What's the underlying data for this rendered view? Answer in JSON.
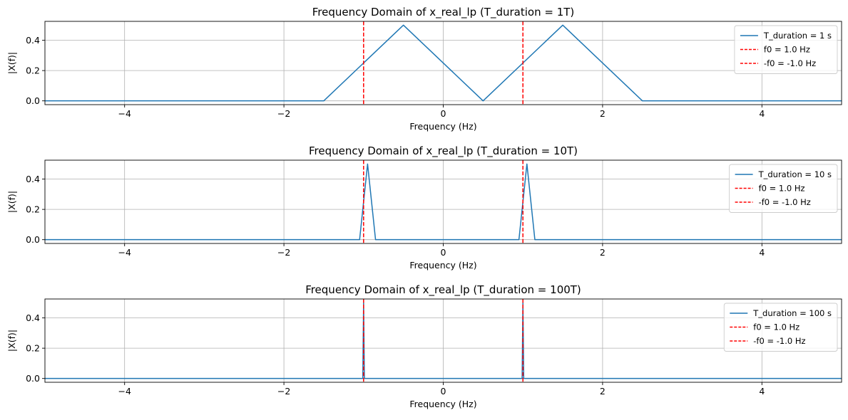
{
  "colors": {
    "series": "#1f77b4",
    "marker": "#ff0000",
    "grid": "#b0b0b0",
    "axes": "#000000",
    "legend_border": "#cccccc"
  },
  "chart_data": [
    {
      "type": "line",
      "title": "Frequency Domain of x_real_lp (T_duration = 1T)",
      "xlabel": "Frequency (Hz)",
      "ylabel": "|X(f)|",
      "xlim": [
        -5,
        5
      ],
      "ylim": [
        -0.025,
        0.525
      ],
      "xticks": [
        -4,
        -2,
        0,
        2,
        4
      ],
      "xtick_labels": [
        "−4",
        "−2",
        "0",
        "2",
        "4"
      ],
      "yticks": [
        0.0,
        0.2,
        0.4
      ],
      "ytick_labels": [
        "0.0",
        "0.2",
        "0.4"
      ],
      "grid": true,
      "legend_position": "upper-right",
      "series": [
        {
          "name": "T_duration = 1 s",
          "style": "solid",
          "x": [
            -5,
            -1.5,
            -0.5,
            0.5,
            1.5,
            2.5,
            5
          ],
          "y": [
            0,
            0,
            0.5,
            0,
            0.5,
            0,
            0
          ]
        }
      ],
      "vlines": [
        {
          "name": "f0 = 1.0 Hz",
          "x": 1.0,
          "style": "dashed"
        },
        {
          "name": "-f0 = -1.0 Hz",
          "x": -1.0,
          "style": "dashed"
        }
      ]
    },
    {
      "type": "line",
      "title": "Frequency Domain of x_real_lp (T_duration = 10T)",
      "xlabel": "Frequency (Hz)",
      "ylabel": "|X(f)|",
      "xlim": [
        -5,
        5
      ],
      "ylim": [
        -0.025,
        0.525
      ],
      "xticks": [
        -4,
        -2,
        0,
        2,
        4
      ],
      "xtick_labels": [
        "−4",
        "−2",
        "0",
        "2",
        "4"
      ],
      "yticks": [
        0.0,
        0.2,
        0.4
      ],
      "ytick_labels": [
        "0.0",
        "0.2",
        "0.4"
      ],
      "grid": true,
      "legend_position": "upper-right",
      "series": [
        {
          "name": "T_duration = 10 s",
          "style": "solid",
          "x": [
            -5,
            -1.05,
            -0.95,
            -0.85,
            0.95,
            1.05,
            1.15,
            5
          ],
          "y": [
            0,
            0,
            0.5,
            0,
            0,
            0.5,
            0,
            0
          ]
        }
      ],
      "vlines": [
        {
          "name": "f0 = 1.0 Hz",
          "x": 1.0,
          "style": "dashed"
        },
        {
          "name": "-f0 = -1.0 Hz",
          "x": -1.0,
          "style": "dashed"
        }
      ]
    },
    {
      "type": "line",
      "title": "Frequency Domain of x_real_lp (T_duration = 100T)",
      "xlabel": "Frequency (Hz)",
      "ylabel": "|X(f)|",
      "xlim": [
        -5,
        5
      ],
      "ylim": [
        -0.025,
        0.525
      ],
      "xticks": [
        -4,
        -2,
        0,
        2,
        4
      ],
      "xtick_labels": [
        "−4",
        "−2",
        "0",
        "2",
        "4"
      ],
      "yticks": [
        0.0,
        0.2,
        0.4
      ],
      "ytick_labels": [
        "0.0",
        "0.2",
        "0.4"
      ],
      "grid": true,
      "legend_position": "upper-right",
      "series": [
        {
          "name": "T_duration = 100 s",
          "style": "solid",
          "x": [
            -5,
            -1.01,
            -1.0,
            -0.99,
            0.99,
            1.0,
            1.01,
            5
          ],
          "y": [
            0,
            0,
            0.5,
            0,
            0,
            0.5,
            0,
            0
          ]
        }
      ],
      "vlines": [
        {
          "name": "f0 = 1.0 Hz",
          "x": 1.0,
          "style": "dashed"
        },
        {
          "name": "-f0 = -1.0 Hz",
          "x": -1.0,
          "style": "dashed"
        }
      ]
    }
  ]
}
